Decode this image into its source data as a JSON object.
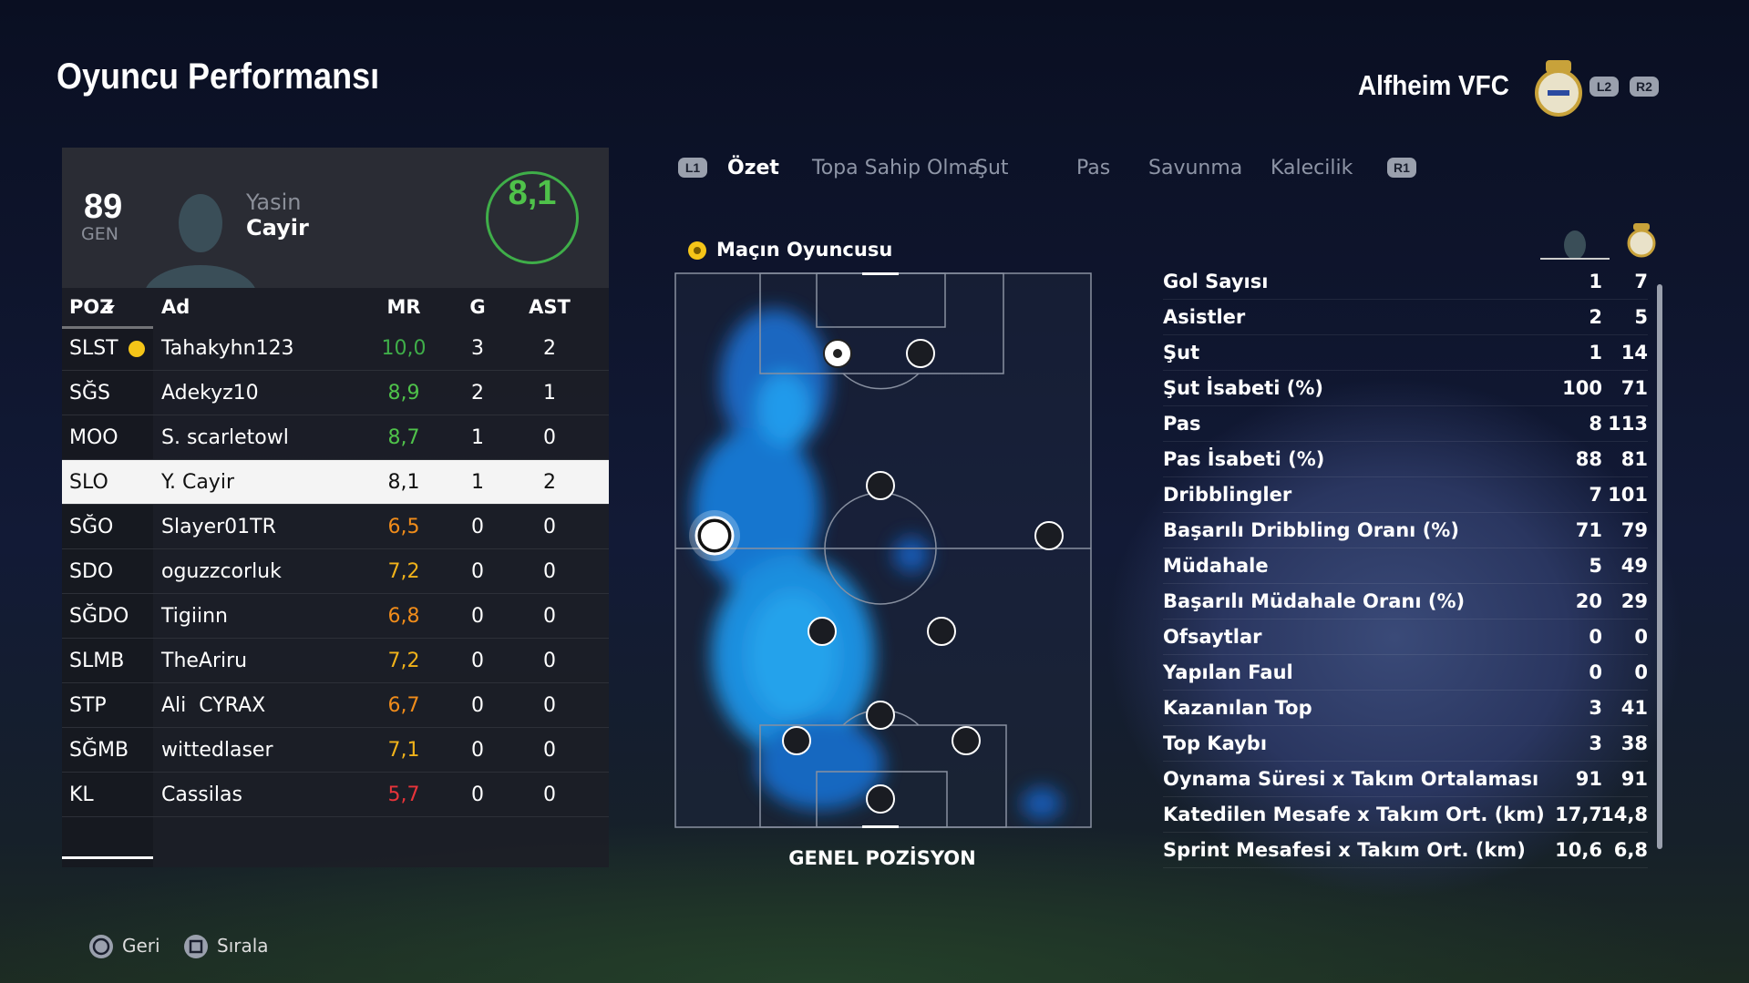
{
  "header": {
    "title": "Oyuncu Performansı",
    "team": "Alfheim VFC",
    "buttons": [
      "L2",
      "R2"
    ]
  },
  "tabs": {
    "left_button": "L1",
    "right_button": "R1",
    "items": [
      "Özet",
      "Topa Sahip Olma",
      "Şut",
      "Pas",
      "Savunma",
      "Kalecilik"
    ]
  },
  "player_card": {
    "overall": "89",
    "overall_label": "GEN",
    "first_name": "Yasin",
    "last_name": "Cayir",
    "rating": "8,1"
  },
  "table": {
    "columns": [
      "POZ",
      "Ad",
      "MR",
      "G",
      "AST"
    ],
    "rows": [
      {
        "pos": "SLST",
        "name": "Tahakyhn123",
        "mr": "10,0",
        "g": "3",
        "ast": "2",
        "mr_color": "#3fae49"
      },
      {
        "pos": "SĞS",
        "name": "Adekyz10",
        "mr": "8,9",
        "g": "2",
        "ast": "1",
        "mr_color": "#4fc24a"
      },
      {
        "pos": "MOO",
        "name": "S. scarletowl",
        "mr": "8,7",
        "g": "1",
        "ast": "0",
        "mr_color": "#4fc24a"
      },
      {
        "pos": "SLO",
        "name": "Y. Cayir",
        "mr": "8,1",
        "g": "1",
        "ast": "2",
        "mr_color": "#111111"
      },
      {
        "pos": "SĞO",
        "name": "Slayer01TR",
        "mr": "6,5",
        "g": "0",
        "ast": "0",
        "mr_color": "#f08c1a"
      },
      {
        "pos": "SDO",
        "name": "oguzzcorluk",
        "mr": "7,2",
        "g": "0",
        "ast": "0",
        "mr_color": "#f0b21a"
      },
      {
        "pos": "SĞDO",
        "name": "Tigiinn",
        "mr": "6,8",
        "g": "0",
        "ast": "0",
        "mr_color": "#f08c1a"
      },
      {
        "pos": "SLMB",
        "name": "TheAriru",
        "mr": "7,2",
        "g": "0",
        "ast": "0",
        "mr_color": "#f0b21a"
      },
      {
        "pos": "STP",
        "name": "Ali  CYRAX",
        "mr": "6,7",
        "g": "0",
        "ast": "0",
        "mr_color": "#f08c1a"
      },
      {
        "pos": "SĞMB",
        "name": "wittedlaser",
        "mr": "7,1",
        "g": "0",
        "ast": "0",
        "mr_color": "#f0b21a"
      },
      {
        "pos": "KL",
        "name": "Cassilas",
        "mr": "5,7",
        "g": "0",
        "ast": "0",
        "mr_color": "#e8343a"
      }
    ]
  },
  "pitch": {
    "label": "Maçın Oyuncusu",
    "caption": "GENEL POZİSYON"
  },
  "stats": {
    "rows": [
      {
        "label": "Gol Sayısı",
        "player": "1",
        "team": "7"
      },
      {
        "label": "Asistler",
        "player": "2",
        "team": "5"
      },
      {
        "label": "Şut",
        "player": "1",
        "team": "14"
      },
      {
        "label": "Şut İsabeti (%)",
        "player": "100",
        "team": "71"
      },
      {
        "label": "Pas",
        "player": "8",
        "team": "113"
      },
      {
        "label": "Pas İsabeti (%)",
        "player": "88",
        "team": "81"
      },
      {
        "label": "Dribblingler",
        "player": "7",
        "team": "101"
      },
      {
        "label": "Başarılı Dribbling Oranı (%)",
        "player": "71",
        "team": "79"
      },
      {
        "label": "Müdahale",
        "player": "5",
        "team": "49"
      },
      {
        "label": "Başarılı Müdahale Oranı (%)",
        "player": "20",
        "team": "29"
      },
      {
        "label": "Ofsaytlar",
        "player": "0",
        "team": "0"
      },
      {
        "label": "Yapılan Faul",
        "player": "0",
        "team": "0"
      },
      {
        "label": "Kazanılan Top",
        "player": "3",
        "team": "41"
      },
      {
        "label": "Top Kaybı",
        "player": "3",
        "team": "38"
      },
      {
        "label": "Oynama Süresi x Takım Ortalaması",
        "player": "91",
        "team": "91"
      },
      {
        "label": "Katedilen Mesafe x Takım Ort. (km)",
        "player": "17,7",
        "team": "14,8"
      },
      {
        "label": "Sprint Mesafesi x Takım Ort. (km)",
        "player": "10,6",
        "team": "6,8"
      }
    ]
  },
  "footer": {
    "back": "Geri",
    "sort": "Sırala"
  }
}
